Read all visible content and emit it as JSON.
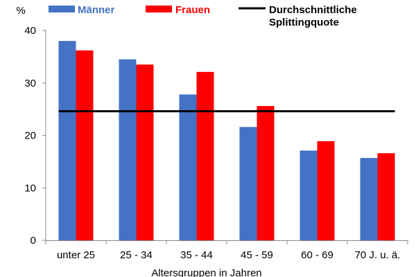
{
  "chart_data": {
    "type": "bar",
    "title": "",
    "ylabel": "%",
    "xlabel": "Altersgruppen in Jahren",
    "ylim": [
      0,
      40
    ],
    "yticks": [
      0,
      10,
      20,
      30,
      40
    ],
    "grid": false,
    "legend_position": "top",
    "categories": [
      "unter 25",
      "25 - 34",
      "35 - 44",
      "45 - 59",
      "60 - 69",
      "70 J. u. ä."
    ],
    "series": [
      {
        "name": "Männer",
        "color": "#4472C4",
        "values": [
          38.0,
          34.5,
          27.8,
          21.6,
          17.1,
          15.7
        ]
      },
      {
        "name": "Frauen",
        "color": "#FF0000",
        "values": [
          36.2,
          33.5,
          32.1,
          25.6,
          18.9,
          16.6
        ]
      }
    ],
    "reference_line": {
      "name_line1": "Durchschnittliche",
      "name_line2": "Splittingquote",
      "value": 24.6,
      "color": "#000000"
    }
  }
}
